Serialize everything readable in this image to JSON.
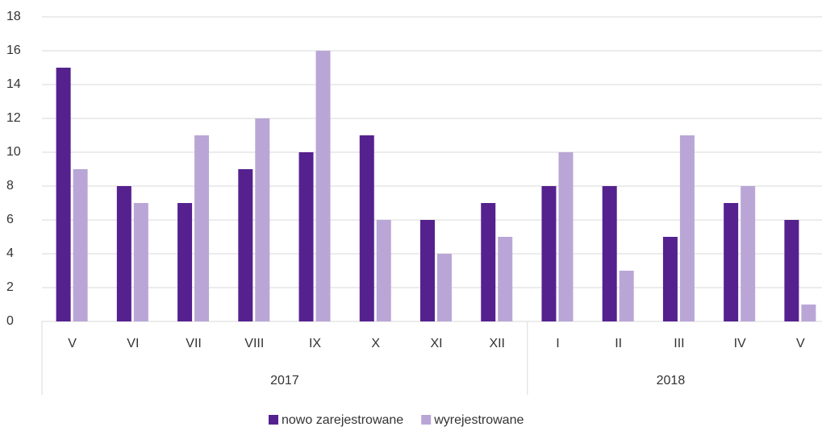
{
  "chart_data": {
    "type": "bar",
    "category_groups": [
      {
        "name": "2017",
        "categories": [
          "V",
          "VI",
          "VII",
          "VIII",
          "IX",
          "X",
          "XI",
          "XII"
        ]
      },
      {
        "name": "2018",
        "categories": [
          "I",
          "II",
          "III",
          "IV",
          "V"
        ]
      }
    ],
    "series": [
      {
        "name": "nowo zarejestrowane",
        "color": "#55218f",
        "values": [
          15,
          8,
          7,
          9,
          10,
          11,
          6,
          7,
          8,
          8,
          5,
          7,
          6
        ]
      },
      {
        "name": "wyrejestrowane",
        "color": "#b9a6d6",
        "values": [
          9,
          7,
          11,
          12,
          16,
          6,
          4,
          5,
          10,
          3,
          11,
          8,
          1
        ]
      }
    ],
    "ylim": [
      0,
      18
    ],
    "yticks": [
      0,
      2,
      4,
      6,
      8,
      10,
      12,
      14,
      16,
      18
    ],
    "grid": true,
    "legend": "bottom"
  }
}
